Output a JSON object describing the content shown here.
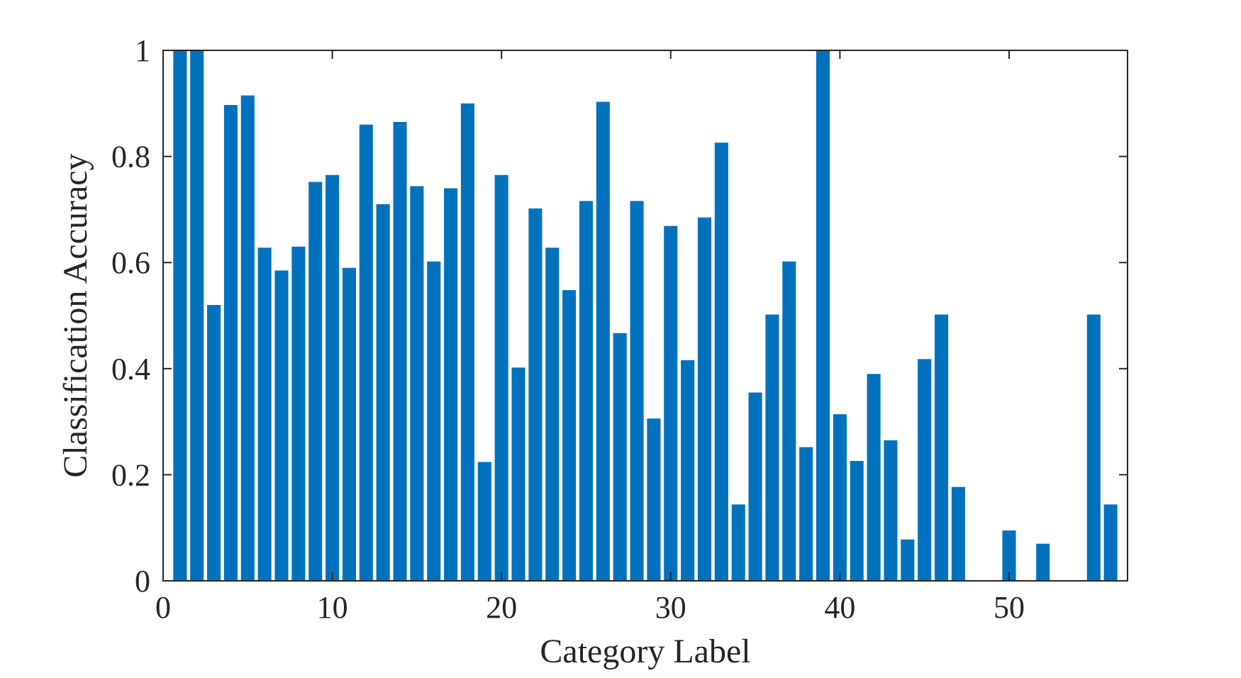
{
  "chart_data": {
    "type": "bar",
    "title": "",
    "xlabel": "Category Label",
    "ylabel": "Classification Accuracy",
    "xlim": [
      0,
      57
    ],
    "ylim": [
      0,
      1
    ],
    "x_ticks": [
      "0",
      "10",
      "20",
      "30",
      "40",
      "50"
    ],
    "y_ticks": [
      "0",
      "0.2",
      "0.4",
      "0.6",
      "0.8",
      "1"
    ],
    "grid": false,
    "legend": "none",
    "bar_color": "#0072BD",
    "x": [
      1,
      2,
      3,
      4,
      5,
      6,
      7,
      8,
      9,
      10,
      11,
      12,
      13,
      14,
      15,
      16,
      17,
      18,
      19,
      20,
      21,
      22,
      23,
      24,
      25,
      26,
      27,
      28,
      29,
      30,
      31,
      32,
      33,
      34,
      35,
      36,
      37,
      38,
      39,
      40,
      41,
      42,
      43,
      44,
      45,
      46,
      47,
      48,
      49,
      50,
      51,
      52,
      53,
      54,
      55,
      56
    ],
    "values": [
      1.0,
      1.0,
      0.52,
      0.897,
      0.915,
      0.628,
      0.585,
      0.63,
      0.752,
      0.765,
      0.59,
      0.86,
      0.71,
      0.865,
      0.744,
      0.602,
      0.74,
      0.9,
      0.224,
      0.765,
      0.402,
      0.702,
      0.628,
      0.548,
      0.716,
      0.903,
      0.467,
      0.716,
      0.306,
      0.669,
      0.416,
      0.685,
      0.826,
      0.144,
      0.355,
      0.502,
      0.602,
      0.252,
      1.0,
      0.314,
      0.226,
      0.39,
      0.265,
      0.078,
      0.418,
      0.502,
      0.177,
      0.0,
      0.0,
      0.095,
      0.0,
      0.07,
      0.0,
      0.0,
      0.502,
      0.144
    ]
  }
}
